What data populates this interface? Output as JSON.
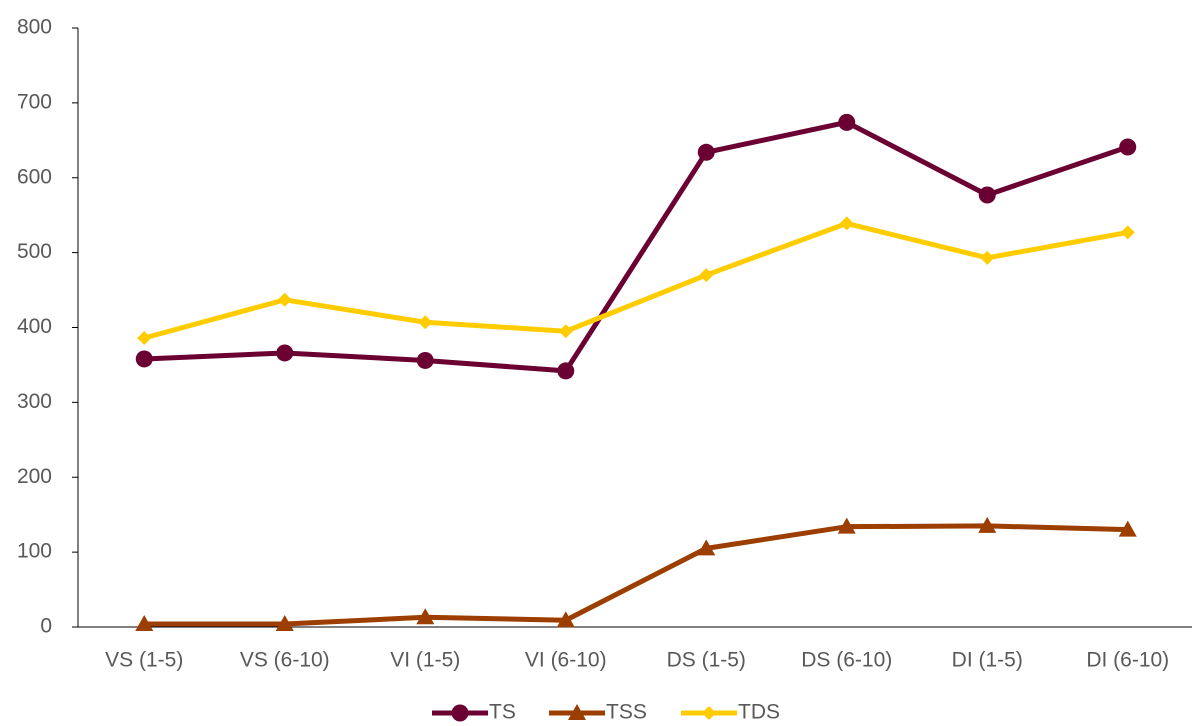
{
  "chart_data": {
    "type": "line",
    "categories": [
      "VS (1-5)",
      "VS (6-10)",
      "VI (1-5)",
      "VI (6-10)",
      "DS (1-5)",
      "DS (6-10)",
      "DI (1-5)",
      "DI (6-10)"
    ],
    "series": [
      {
        "name": "TS",
        "color": "#6b0033",
        "marker": "circle",
        "values": [
          358,
          366,
          356,
          342,
          634,
          674,
          577,
          641
        ]
      },
      {
        "name": "TSS",
        "color": "#9c3e00",
        "marker": "triangle",
        "values": [
          4,
          4,
          13,
          9,
          105,
          134,
          135,
          130
        ]
      },
      {
        "name": "TDS",
        "color": "#ffcc00",
        "marker": "diamond",
        "values": [
          386,
          437,
          407,
          395,
          470,
          539,
          493,
          527
        ]
      }
    ],
    "ylim": [
      0,
      800
    ],
    "yticks": [
      0,
      100,
      200,
      300,
      400,
      500,
      600,
      700,
      800
    ],
    "grid": false,
    "legend": "bottom"
  }
}
